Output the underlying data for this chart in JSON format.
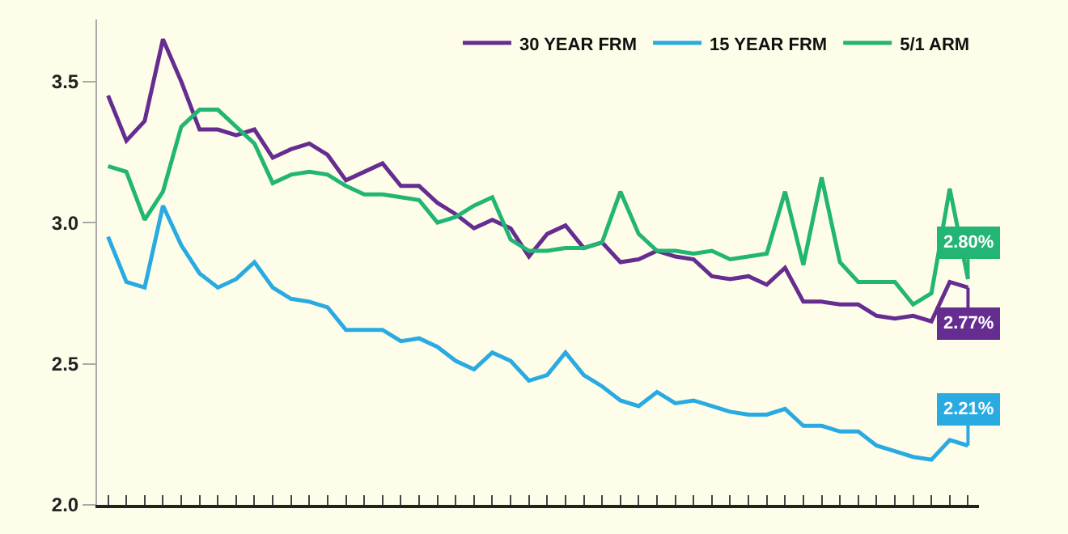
{
  "chart_data": {
    "type": "line",
    "categories": [
      null,
      null,
      null,
      null,
      null,
      null,
      null,
      null,
      null,
      null,
      null,
      null,
      null,
      null,
      null,
      null,
      null,
      null,
      null,
      null,
      null,
      null,
      null,
      null,
      null,
      null,
      null,
      null,
      null,
      null,
      null,
      null,
      null,
      null,
      null,
      null,
      null,
      null,
      null,
      null,
      null,
      null,
      null,
      null,
      null,
      null,
      null,
      null
    ],
    "series": [
      {
        "name": "30 YEAR FRM",
        "color": "#662d91",
        "values": [
          3.45,
          3.29,
          3.36,
          3.65,
          3.5,
          3.33,
          3.33,
          3.31,
          3.33,
          3.23,
          3.26,
          3.28,
          3.24,
          3.15,
          3.18,
          3.21,
          3.13,
          3.13,
          3.07,
          3.03,
          2.98,
          3.01,
          2.98,
          2.88,
          2.96,
          2.99,
          2.91,
          2.93,
          2.86,
          2.87,
          2.9,
          2.88,
          2.87,
          2.81,
          2.8,
          2.81,
          2.78,
          2.84,
          2.72,
          2.72,
          2.71,
          2.71,
          2.67,
          2.66,
          2.67,
          2.65,
          2.79,
          2.77
        ],
        "value_labels": [
          null,
          null,
          null,
          null,
          null,
          null,
          null,
          null,
          null,
          null,
          null,
          null,
          null,
          null,
          null,
          null,
          null,
          null,
          null,
          null,
          null,
          null,
          null,
          null,
          null,
          null,
          null,
          null,
          null,
          null,
          null,
          null,
          null,
          null,
          null,
          null,
          null,
          null,
          null,
          null,
          null,
          null,
          null,
          null,
          null,
          null,
          null,
          "2.77%"
        ]
      },
      {
        "name": "15 YEAR FRM",
        "color": "#29abe2",
        "values": [
          2.95,
          2.79,
          2.77,
          3.06,
          2.92,
          2.82,
          2.77,
          2.8,
          2.86,
          2.77,
          2.73,
          2.72,
          2.7,
          2.62,
          2.62,
          2.62,
          2.58,
          2.59,
          2.56,
          2.51,
          2.48,
          2.54,
          2.51,
          2.44,
          2.46,
          2.54,
          2.46,
          2.42,
          2.37,
          2.35,
          2.4,
          2.36,
          2.37,
          2.35,
          2.33,
          2.32,
          2.32,
          2.34,
          2.28,
          2.28,
          2.26,
          2.26,
          2.21,
          2.19,
          2.17,
          2.16,
          2.23,
          2.21
        ],
        "value_labels": [
          null,
          null,
          null,
          null,
          null,
          null,
          null,
          null,
          null,
          null,
          null,
          null,
          null,
          null,
          null,
          null,
          null,
          null,
          null,
          null,
          null,
          null,
          null,
          null,
          null,
          null,
          null,
          null,
          null,
          null,
          null,
          null,
          null,
          null,
          null,
          null,
          null,
          null,
          null,
          null,
          null,
          null,
          null,
          null,
          null,
          null,
          null,
          "2.21%"
        ]
      },
      {
        "name": "5/1 ARM",
        "color": "#22b573",
        "values": [
          3.2,
          3.18,
          3.01,
          3.11,
          3.34,
          3.4,
          3.4,
          3.34,
          3.28,
          3.14,
          3.17,
          3.18,
          3.17,
          3.13,
          3.1,
          3.1,
          3.09,
          3.08,
          3.0,
          3.02,
          3.06,
          3.09,
          2.94,
          2.9,
          2.9,
          2.91,
          2.91,
          2.93,
          3.11,
          2.96,
          2.9,
          2.9,
          2.89,
          2.9,
          2.87,
          2.88,
          2.89,
          3.11,
          2.85,
          3.16,
          2.86,
          2.79,
          2.79,
          2.79,
          2.71,
          2.75,
          3.12,
          2.8
        ],
        "value_labels": [
          null,
          null,
          null,
          null,
          null,
          null,
          null,
          null,
          null,
          null,
          null,
          null,
          null,
          null,
          null,
          null,
          null,
          null,
          null,
          null,
          null,
          null,
          null,
          null,
          null,
          null,
          null,
          null,
          null,
          null,
          null,
          null,
          null,
          null,
          null,
          null,
          null,
          null,
          null,
          null,
          null,
          null,
          null,
          null,
          null,
          null,
          null,
          "2.80%"
        ]
      }
    ],
    "ylim": [
      2.0,
      3.72
    ],
    "yticks": [
      {
        "value": 2.0,
        "label": "2.0"
      },
      {
        "value": 2.5,
        "label": "2.5"
      },
      {
        "value": 3.0,
        "label": "3.0"
      },
      {
        "value": 3.5,
        "label": "3.5"
      }
    ],
    "grid": false,
    "legend": "top right",
    "marker": "none",
    "line_style": "solid"
  }
}
